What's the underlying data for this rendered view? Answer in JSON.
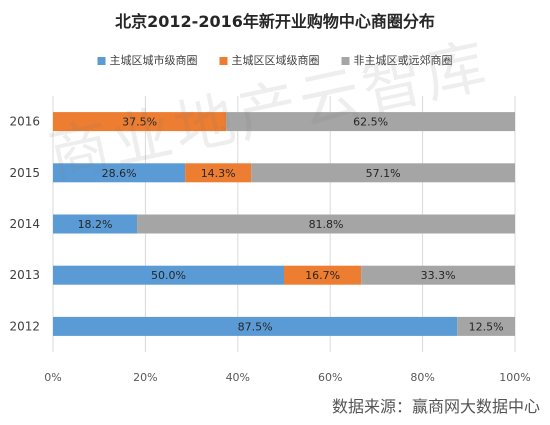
{
  "chart_data": {
    "type": "bar",
    "orientation": "horizontal",
    "stacked": "percent",
    "title": "北京2012-2016年新开业购物中心商圈分布",
    "categories": [
      "2016",
      "2015",
      "2014",
      "2013",
      "2012"
    ],
    "series": [
      {
        "name": "主城区城市级商圈",
        "color": "#5B9BD5",
        "values": [
          0,
          28.6,
          18.2,
          50.0,
          87.5
        ],
        "labels": [
          "",
          "28.6%",
          "18.2%",
          "50.0%",
          "87.5%"
        ]
      },
      {
        "name": "主城区区域级商圈",
        "color": "#ED7D31",
        "values": [
          37.5,
          14.3,
          0,
          16.7,
          0
        ],
        "labels": [
          "37.5%",
          "14.3%",
          "",
          "16.7%",
          ""
        ]
      },
      {
        "name": "非主城区或远郊商圈",
        "color": "#A5A5A5",
        "values": [
          62.5,
          57.1,
          81.8,
          33.3,
          12.5
        ],
        "labels": [
          "62.5%",
          "57.1%",
          "81.8%",
          "33.3%",
          "12.5%"
        ]
      }
    ],
    "x_ticks": [
      "0%",
      "20%",
      "40%",
      "60%",
      "80%",
      "100%"
    ],
    "xlim": [
      0,
      100
    ],
    "grid": true,
    "legend_position": "top"
  },
  "watermark": "商业地产云智库",
  "source_note": "数据来源：赢商网大数据中心"
}
